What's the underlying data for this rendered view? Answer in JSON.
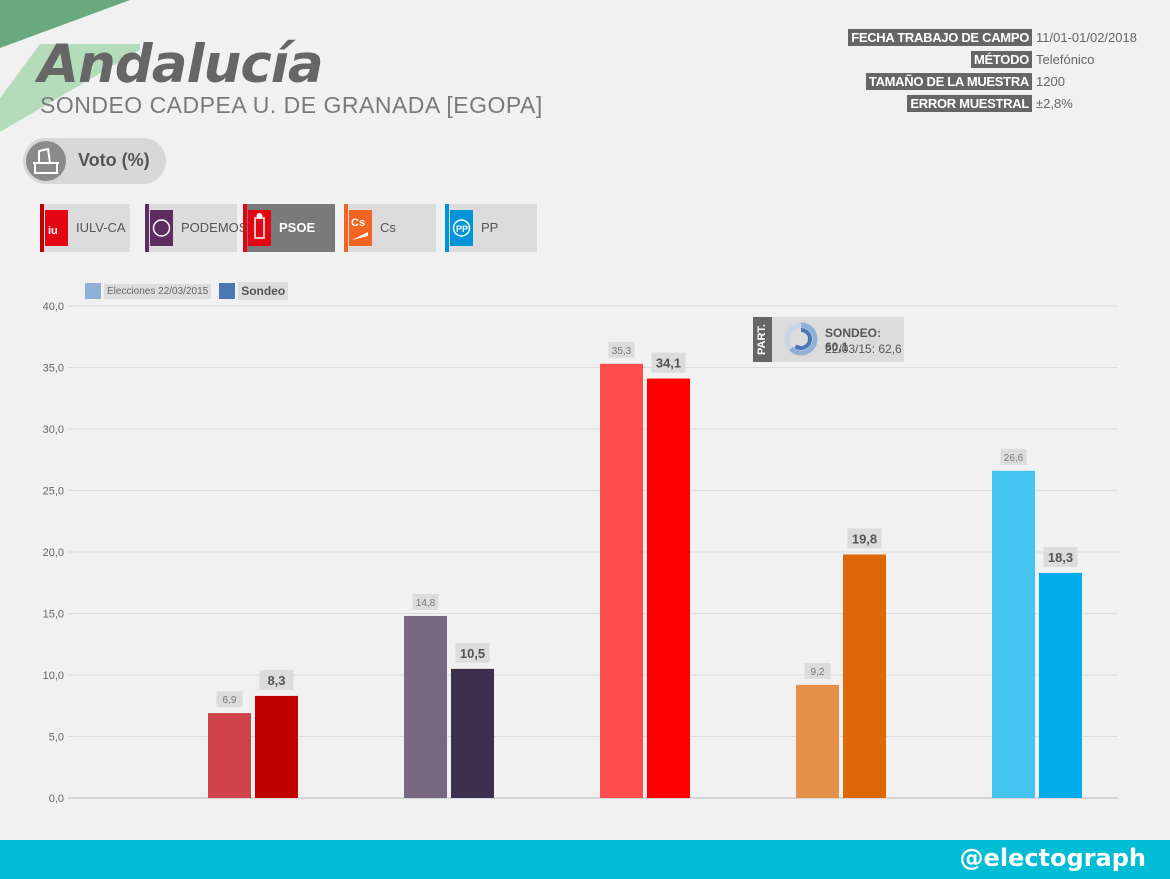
{
  "header": {
    "title": "Andalucía",
    "subtitle": "SONDEO CADPEA U. DE GRANADA [EGOPA]"
  },
  "info": [
    {
      "key": "FECHA TRABAJO DE CAMPO",
      "value": "11/01-01/02/2018"
    },
    {
      "key": "MÉTODO",
      "value": "Telefónico"
    },
    {
      "key": "TAMAÑO DE LA MUESTRA",
      "value": "1200"
    },
    {
      "key": "ERROR MUESTRAL",
      "value": "±2,8%"
    }
  ],
  "voto_label": "Voto (%)",
  "parties": [
    {
      "label": "IULV-CA",
      "color": "#c00000",
      "icon": "iu-logo-icon"
    },
    {
      "label": "PODEMOS",
      "color": "#5d2e5f",
      "icon": "podemos-logo-icon"
    },
    {
      "label": "PSOE",
      "color": "#e30613",
      "icon": "psoe-logo-icon"
    },
    {
      "label": "Cs",
      "color": "#f26522",
      "icon": "cs-logo-icon"
    },
    {
      "label": "PP",
      "color": "#0095d9",
      "icon": "pp-logo-icon"
    }
  ],
  "participation": {
    "tag": "PART.",
    "sondeo": "SONDEO: 60,1",
    "previous": "22/03/15: 62,6",
    "sondeo_value": 60.1,
    "previous_value": 62.6
  },
  "footer": {
    "brand": "@electograph"
  },
  "chart_data": {
    "type": "bar",
    "categories": [
      "IULV-CA",
      "PODEMOS",
      "PSOE",
      "Cs",
      "PP"
    ],
    "series": [
      {
        "name": "Elecciones 22/03/2015",
        "values": [
          6.9,
          14.8,
          35.3,
          9.2,
          26.6
        ],
        "value_labels": [
          "6,9",
          "14,8",
          "35,3",
          "9,2",
          "26,6"
        ],
        "colors": [
          "#d1434b",
          "#77677f",
          "#ff4c4c",
          "#e4914b",
          "#44c5f0"
        ],
        "legend_color": "#8fb0d8"
      },
      {
        "name": "Sondeo",
        "values": [
          8.3,
          10.5,
          34.1,
          19.8,
          18.3
        ],
        "value_labels": [
          "8,3",
          "10,5",
          "34,1",
          "19,8",
          "18,3"
        ],
        "colors": [
          "#c10000",
          "#3e2f4f",
          "#ff0000",
          "#de6808",
          "#00acec"
        ],
        "legend_color": "#4a78b5"
      }
    ],
    "ylim": [
      0,
      40
    ],
    "yticks": [
      "0,0",
      "5,0",
      "10,0",
      "15,0",
      "20,0",
      "25,0",
      "30,0",
      "35,0",
      "40,0"
    ],
    "grid": true,
    "legend": "top-left"
  }
}
